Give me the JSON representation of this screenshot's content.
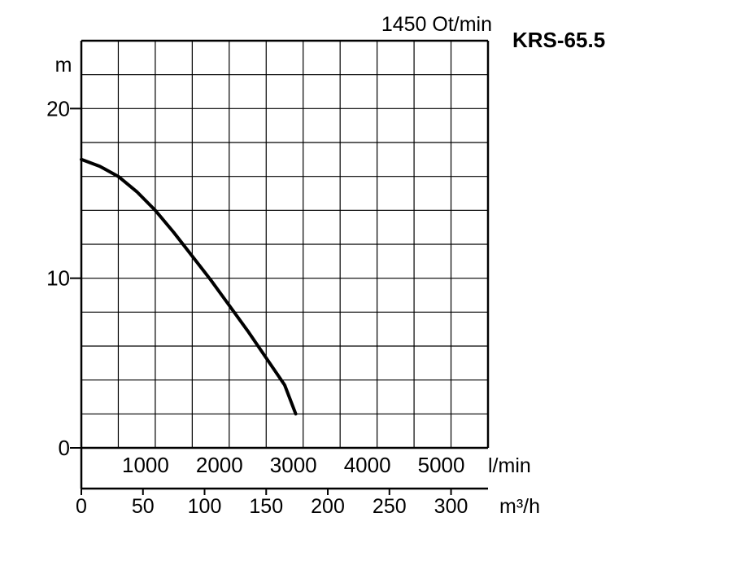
{
  "chart_data": {
    "type": "line",
    "title": "KRS-65.5",
    "subtitle": "1450 Ot/min",
    "ylabel": "m",
    "ylim": [
      0,
      24
    ],
    "yticks": [
      0,
      10,
      20
    ],
    "x_lmin_ticks": [
      1000,
      2000,
      3000,
      4000,
      5000
    ],
    "x_lmin_unit": "l/min",
    "x_lmin_range": [
      0,
      5500
    ],
    "x_m3h_ticks": [
      0,
      50,
      100,
      150,
      200,
      250,
      300
    ],
    "x_m3h_unit": "m³/h",
    "x_m3h_range": [
      0,
      330
    ],
    "grid": true,
    "series": [
      {
        "points_lmin_m": [
          [
            0,
            17.0
          ],
          [
            250,
            16.6
          ],
          [
            500,
            16.0
          ],
          [
            750,
            15.1
          ],
          [
            1000,
            14.0
          ],
          [
            1250,
            12.7
          ],
          [
            1500,
            11.3
          ],
          [
            1750,
            9.9
          ],
          [
            2000,
            8.4
          ],
          [
            2250,
            6.9
          ],
          [
            2500,
            5.3
          ],
          [
            2750,
            3.7
          ],
          [
            2900,
            2.0
          ]
        ]
      }
    ]
  }
}
